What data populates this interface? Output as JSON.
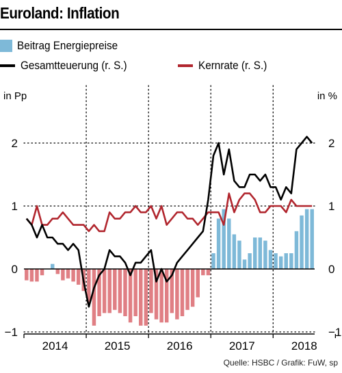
{
  "title": "Euroland: Inflation",
  "source": "Quelle: HSBC / Grafik: FuW, sp",
  "legend": {
    "bars": "Beitrag Energiepreise",
    "total": "Gesamtteuerung (r. S.)",
    "core": "Kernrate (r. S.)"
  },
  "colors": {
    "bar_negative": "#e07f84",
    "bar_positive": "#7eb9d8",
    "total_line": "#000000",
    "core_line": "#b1262e"
  },
  "chart_data": {
    "type": "bar",
    "unit_left": "in Pp",
    "unit_right": "in %",
    "ylim": [
      -1,
      2.5
    ],
    "yticks_left": [
      "2",
      "1",
      "0",
      "−1"
    ],
    "yticks_right": [
      "2",
      "1",
      "0",
      "−1"
    ],
    "ytick_values": [
      2,
      1,
      0,
      -1
    ],
    "x_labels": [
      "2014",
      "2015",
      "2016",
      "2017",
      "2018"
    ],
    "start": "2014-01",
    "series": [
      {
        "name": "Beitrag Energiepreise",
        "type": "bar",
        "values": [
          -0.18,
          -0.2,
          -0.2,
          -0.1,
          0.0,
          0.08,
          -0.08,
          -0.18,
          -0.15,
          -0.2,
          -0.25,
          -0.35,
          -0.55,
          -0.9,
          -0.75,
          -0.7,
          -0.7,
          -0.65,
          -0.7,
          -0.75,
          -0.85,
          -0.75,
          -0.9,
          -0.9,
          -0.7,
          -0.8,
          -0.85,
          -0.85,
          -0.7,
          -0.8,
          -0.75,
          -0.65,
          -0.6,
          -0.45,
          -0.1,
          -0.1,
          0.25,
          0.8,
          0.95,
          0.8,
          0.55,
          0.45,
          0.15,
          0.25,
          0.5,
          0.5,
          0.45,
          0.3,
          0.25,
          0.2,
          0.25,
          0.25,
          0.6,
          0.85,
          0.95,
          0.95
        ]
      },
      {
        "name": "Gesamtteuerung (r. S.)",
        "type": "line",
        "values": [
          0.8,
          0.7,
          0.5,
          0.7,
          0.5,
          0.5,
          0.4,
          0.4,
          0.3,
          0.4,
          0.3,
          -0.2,
          -0.6,
          -0.3,
          -0.1,
          0.0,
          0.3,
          0.2,
          0.2,
          0.1,
          -0.1,
          0.1,
          0.1,
          0.2,
          0.3,
          -0.2,
          0.0,
          -0.2,
          -0.1,
          0.1,
          0.2,
          0.3,
          0.4,
          0.5,
          0.6,
          1.1,
          1.8,
          2.0,
          1.5,
          1.9,
          1.4,
          1.3,
          1.3,
          1.5,
          1.5,
          1.4,
          1.5,
          1.3,
          1.3,
          1.1,
          1.3,
          1.2,
          1.9,
          2.0,
          2.1,
          2.0
        ]
      },
      {
        "name": "Kernrate (r. S.)",
        "type": "line",
        "values": [
          0.8,
          0.7,
          1.0,
          0.7,
          0.7,
          0.8,
          0.8,
          0.9,
          0.8,
          0.7,
          0.7,
          0.7,
          0.6,
          0.7,
          0.6,
          0.6,
          0.9,
          0.8,
          0.8,
          0.9,
          0.9,
          1.0,
          0.9,
          0.9,
          1.0,
          0.8,
          1.0,
          0.7,
          0.8,
          0.9,
          0.9,
          0.8,
          0.8,
          0.7,
          0.8,
          0.9,
          0.9,
          0.9,
          0.7,
          1.2,
          0.9,
          1.1,
          1.2,
          1.2,
          1.1,
          0.9,
          0.9,
          1.0,
          1.0,
          1.0,
          0.9,
          1.1,
          1.0,
          1.0,
          1.0,
          1.0
        ]
      }
    ]
  }
}
